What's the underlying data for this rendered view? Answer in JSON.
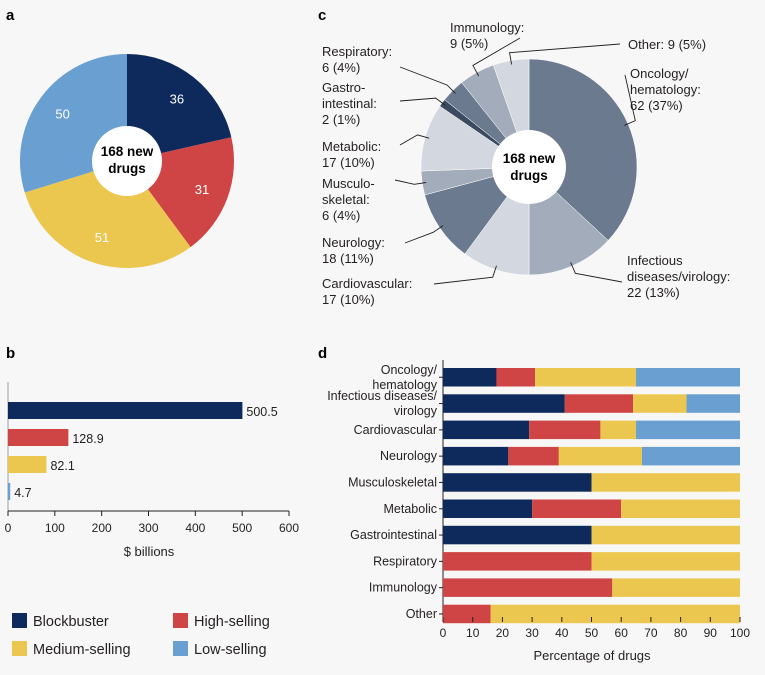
{
  "colors": {
    "blockbuster": "#0e2a5c",
    "high": "#cf4545",
    "medium": "#ecc750",
    "low": "#6a9fd2",
    "therapy_base": "#6b7a8f"
  },
  "legend": [
    {
      "key": "blockbuster",
      "label": "Blockbuster"
    },
    {
      "key": "high",
      "label": "High-selling"
    },
    {
      "key": "medium",
      "label": "Medium-selling"
    },
    {
      "key": "low",
      "label": "Low-selling"
    }
  ],
  "chart_data": [
    {
      "panel": "a",
      "type": "pie",
      "center_label_lines": [
        "168 new",
        "drugs"
      ],
      "slices": [
        {
          "label": "36",
          "value": 36,
          "key": "blockbuster"
        },
        {
          "label": "31",
          "value": 31,
          "key": "high"
        },
        {
          "label": "51",
          "value": 51,
          "key": "medium"
        },
        {
          "label": "50",
          "value": 50,
          "key": "low"
        }
      ]
    },
    {
      "panel": "b",
      "type": "bar",
      "orientation": "horizontal",
      "categories": [
        "Blockbuster",
        "High-selling",
        "Medium-selling",
        "Low-selling"
      ],
      "values": [
        500.5,
        128.9,
        82.1,
        4.7
      ],
      "value_labels": [
        "500.5",
        "128.9",
        "82.1",
        "4.7"
      ],
      "xlabel": "$ billions",
      "xlim": [
        0,
        600
      ],
      "xticks": [
        0,
        100,
        200,
        300,
        400,
        500,
        600
      ]
    },
    {
      "panel": "c",
      "type": "pie",
      "center_label_lines": [
        "168 new",
        "drugs"
      ],
      "slices": [
        {
          "name": "Oncology/ hematology",
          "value": 62,
          "label_lines": [
            "Oncology/",
            "hematology:",
            "62 (37%)"
          ],
          "shade": "#6b7a8f"
        },
        {
          "name": "Infectious diseases/virology",
          "value": 22,
          "label_lines": [
            "Infectious",
            "diseases/virology:",
            "22 (13%)"
          ],
          "shade": "#a3acbb"
        },
        {
          "name": "Cardiovascular",
          "value": 17,
          "label_lines": [
            "Cardiovascular:",
            "17 (10%)"
          ],
          "shade": "#d3d7df"
        },
        {
          "name": "Neurology",
          "value": 18,
          "label_lines": [
            "Neurology:",
            "18 (11%)"
          ],
          "shade": "#6b7a8f"
        },
        {
          "name": "Musculoskeletal",
          "value": 6,
          "label_lines": [
            "Musculo-",
            "skeletal:",
            "6 (4%)"
          ],
          "shade": "#a3acbb"
        },
        {
          "name": "Metabolic",
          "value": 17,
          "label_lines": [
            "Metabolic:",
            "17 (10%)"
          ],
          "shade": "#d3d7df"
        },
        {
          "name": "Gastrointestinal",
          "value": 2,
          "label_lines": [
            "Gastro-",
            "intestinal:",
            "2 (1%)"
          ],
          "shade": "#3b4a60"
        },
        {
          "name": "Respiratory",
          "value": 6,
          "label_lines": [
            "Respiratory:",
            "6 (4%)"
          ],
          "shade": "#6b7a8f"
        },
        {
          "name": "Immunology",
          "value": 9,
          "label_lines": [
            "Immunology:",
            "9 (5%)"
          ],
          "shade": "#a3acbb"
        },
        {
          "name": "Other",
          "value": 9,
          "label_lines": [
            "Other: 9 (5%)"
          ],
          "shade": "#d3d7df"
        }
      ]
    },
    {
      "panel": "d",
      "type": "bar",
      "orientation": "horizontal",
      "stacked": true,
      "categories": [
        [
          "Oncology/",
          "hematology"
        ],
        [
          "Infectious diseases/",
          "virology"
        ],
        [
          "Cardiovascular"
        ],
        [
          "Neurology"
        ],
        [
          "Musculoskeletal"
        ],
        [
          "Metabolic"
        ],
        [
          "Gastrointestinal"
        ],
        [
          "Respiratory"
        ],
        [
          "Immunology"
        ],
        [
          "Other"
        ]
      ],
      "series": [
        {
          "key": "blockbuster",
          "name": "Blockbuster",
          "values": [
            18,
            41,
            29,
            22,
            50,
            30,
            50,
            0,
            0,
            0
          ]
        },
        {
          "key": "high",
          "name": "High-selling",
          "values": [
            13,
            23,
            24,
            17,
            0,
            30,
            0,
            50,
            57,
            16
          ]
        },
        {
          "key": "medium",
          "name": "Medium-selling",
          "values": [
            34,
            18,
            12,
            28,
            50,
            40,
            50,
            50,
            43,
            84
          ]
        },
        {
          "key": "low",
          "name": "Low-selling",
          "values": [
            35,
            18,
            35,
            33,
            0,
            0,
            0,
            0,
            0,
            0
          ]
        }
      ],
      "xlabel": "Percentage of drugs",
      "xlim": [
        0,
        100
      ],
      "xticks": [
        0,
        10,
        20,
        30,
        40,
        50,
        60,
        70,
        80,
        90,
        100
      ]
    }
  ]
}
